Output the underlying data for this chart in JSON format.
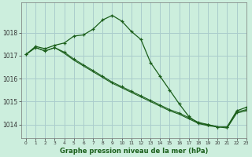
{
  "title": "Graphe pression niveau de la mer (hPa)",
  "bg_color": "#cceedd",
  "grid_color": "#aacccc",
  "line_color": "#1a5e1a",
  "xlim": [
    -0.5,
    23
  ],
  "ylim": [
    1013.4,
    1019.3
  ],
  "yticks": [
    1014,
    1015,
    1016,
    1017,
    1018
  ],
  "xticks": [
    0,
    1,
    2,
    3,
    4,
    5,
    6,
    7,
    8,
    9,
    10,
    11,
    12,
    13,
    14,
    15,
    16,
    17,
    18,
    19,
    20,
    21,
    22,
    23
  ],
  "line1_x": [
    0,
    1,
    2,
    3,
    4,
    5,
    6,
    7,
    8,
    9,
    10,
    11,
    12,
    13,
    14,
    15,
    16,
    17,
    18,
    19,
    20,
    21,
    22,
    23
  ],
  "line1_y": [
    1017.05,
    1017.4,
    1017.3,
    1017.45,
    1017.55,
    1017.85,
    1017.9,
    1018.15,
    1018.55,
    1018.75,
    1018.5,
    1018.05,
    1017.7,
    1016.7,
    1016.1,
    1015.5,
    1014.9,
    1014.35,
    1014.05,
    1014.0,
    1013.9,
    1013.9,
    1014.6,
    1014.75
  ],
  "line2_x": [
    0,
    1,
    2,
    3,
    4,
    5,
    6,
    7,
    8,
    9,
    10,
    11,
    12,
    13,
    14,
    15,
    16,
    17,
    18,
    19,
    20,
    21,
    22,
    23
  ],
  "line2_y": [
    1017.05,
    1017.35,
    1017.2,
    1017.35,
    1017.15,
    1016.85,
    1016.6,
    1016.35,
    1016.1,
    1015.85,
    1015.65,
    1015.45,
    1015.25,
    1015.05,
    1014.85,
    1014.65,
    1014.5,
    1014.3,
    1014.1,
    1014.0,
    1013.9,
    1013.9,
    1014.55,
    1014.65
  ],
  "line3_x": [
    0,
    1,
    2,
    3,
    4,
    5,
    6,
    7,
    8,
    9,
    10,
    11,
    12,
    13,
    14,
    15,
    16,
    17,
    18,
    19,
    20,
    21,
    22,
    23
  ],
  "line3_y": [
    1017.05,
    1017.35,
    1017.2,
    1017.35,
    1017.1,
    1016.8,
    1016.55,
    1016.3,
    1016.05,
    1015.8,
    1015.6,
    1015.4,
    1015.2,
    1015.0,
    1014.8,
    1014.6,
    1014.45,
    1014.25,
    1014.05,
    1013.95,
    1013.9,
    1013.85,
    1014.5,
    1014.6
  ]
}
